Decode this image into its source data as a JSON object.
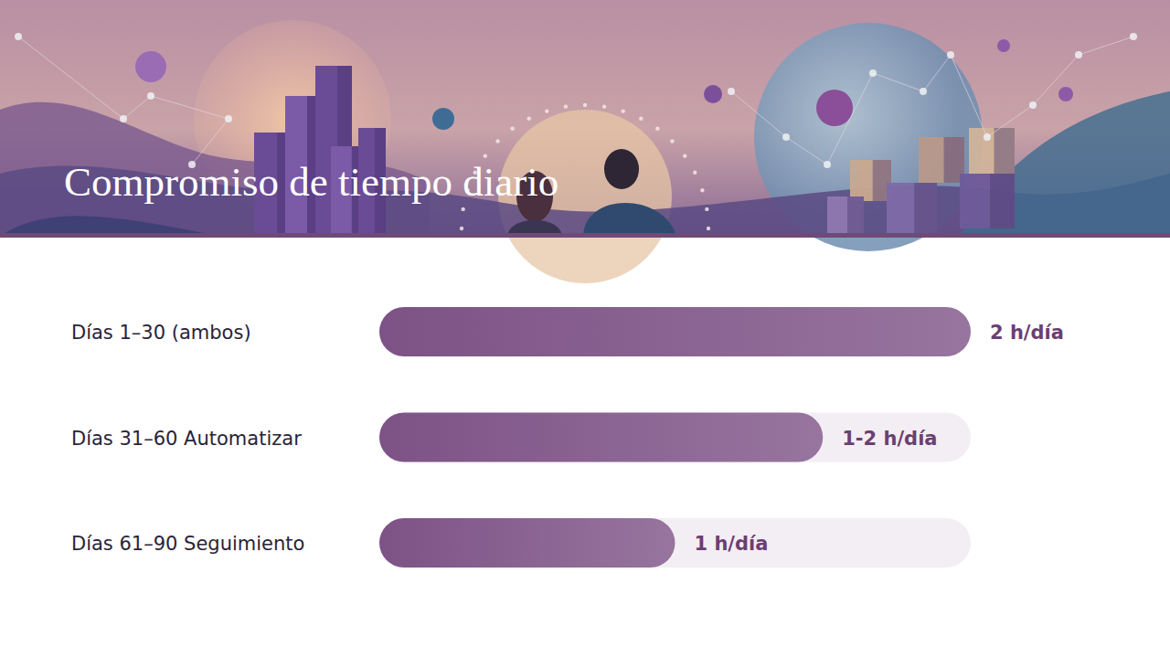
{
  "chart_data": {
    "type": "bar",
    "title": "Compromiso de tiempo diario",
    "orientation": "horizontal",
    "categories": [
      "Días 1–30 (ambos)",
      "Días 31–60 Automatizar",
      "Días 61–90 Seguimiento"
    ],
    "values": [
      2,
      1.5,
      1
    ],
    "value_labels": [
      "2 h/día",
      "1-2 h/día",
      "1 h/día"
    ],
    "xlim": [
      0,
      2
    ],
    "color": "#7d5286",
    "data_labels": true,
    "tick_labels": false,
    "grid": false
  }
}
